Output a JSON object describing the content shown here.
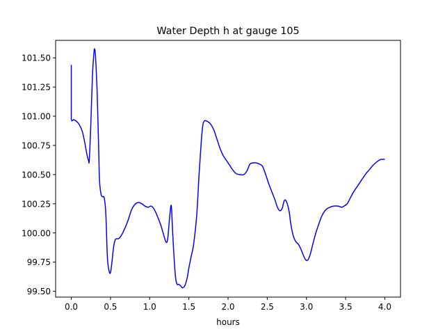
{
  "chart_data": {
    "type": "line",
    "title": "Water Depth h at gauge 105",
    "xlabel": "hours",
    "ylabel": "",
    "xlim": [
      -0.2,
      4.2
    ],
    "ylim": [
      99.45,
      101.65
    ],
    "xticks": [
      0.0,
      0.5,
      1.0,
      1.5,
      2.0,
      2.5,
      3.0,
      3.5,
      4.0
    ],
    "xtick_labels": [
      "0.0",
      "0.5",
      "1.0",
      "1.5",
      "2.0",
      "2.5",
      "3.0",
      "3.5",
      "4.0"
    ],
    "yticks": [
      99.5,
      99.75,
      100.0,
      100.25,
      100.5,
      100.75,
      101.0,
      101.25,
      101.5
    ],
    "ytick_labels": [
      "99.50",
      "99.75",
      "100.00",
      "100.25",
      "100.50",
      "100.75",
      "101.00",
      "101.25",
      "101.50"
    ],
    "grid": false,
    "color": "#0000ff",
    "series": [
      {
        "x": [
          0.0,
          0.0,
          0.0,
          0.03,
          0.06,
          0.1,
          0.14,
          0.17,
          0.2,
          0.22,
          0.23,
          0.25,
          0.27,
          0.29,
          0.3,
          0.31,
          0.33,
          0.35,
          0.36,
          0.38,
          0.4,
          0.42,
          0.44,
          0.46,
          0.48,
          0.5,
          0.52,
          0.54,
          0.56,
          0.58,
          0.6,
          0.63,
          0.67,
          0.72,
          0.77,
          0.82,
          0.86,
          0.9,
          0.94,
          0.98,
          1.02,
          1.06,
          1.1,
          1.14,
          1.18,
          1.21,
          1.23,
          1.25,
          1.27,
          1.28,
          1.29,
          1.31,
          1.33,
          1.35,
          1.37,
          1.39,
          1.42,
          1.45,
          1.48,
          1.5,
          1.53,
          1.56,
          1.6,
          1.63,
          1.66,
          1.68,
          1.7,
          1.72,
          1.75,
          1.78,
          1.82,
          1.86,
          1.9,
          1.94,
          1.98,
          2.02,
          2.06,
          2.1,
          2.15,
          2.2,
          2.24,
          2.28,
          2.32,
          2.36,
          2.4,
          2.44,
          2.48,
          2.52,
          2.56,
          2.6,
          2.63,
          2.66,
          2.69,
          2.72,
          2.75,
          2.78,
          2.8,
          2.83,
          2.86,
          2.9,
          2.93,
          2.96,
          2.99,
          3.02,
          3.05,
          3.08,
          3.12,
          3.16,
          3.2,
          3.25,
          3.3,
          3.35,
          3.4,
          3.45,
          3.48,
          3.52,
          3.56,
          3.6,
          3.65,
          3.7,
          3.75,
          3.8,
          3.85,
          3.9,
          3.95,
          4.0
        ],
        "values": [
          101.44,
          101.2,
          100.98,
          100.97,
          100.96,
          100.93,
          100.87,
          100.78,
          100.67,
          100.62,
          100.63,
          100.95,
          101.35,
          101.55,
          101.57,
          101.5,
          101.2,
          100.7,
          100.45,
          100.33,
          100.31,
          100.3,
          100.17,
          99.8,
          99.68,
          99.66,
          99.76,
          99.88,
          99.94,
          99.95,
          99.95,
          99.97,
          100.02,
          100.1,
          100.2,
          100.25,
          100.26,
          100.25,
          100.23,
          100.22,
          100.23,
          100.2,
          100.14,
          100.07,
          99.98,
          99.92,
          99.95,
          100.1,
          100.23,
          100.2,
          100.05,
          99.8,
          99.62,
          99.56,
          99.56,
          99.55,
          99.53,
          99.55,
          99.62,
          99.7,
          99.8,
          99.9,
          100.15,
          100.5,
          100.8,
          100.93,
          100.96,
          100.96,
          100.95,
          100.93,
          100.88,
          100.8,
          100.72,
          100.66,
          100.62,
          100.58,
          100.54,
          100.51,
          100.5,
          100.5,
          100.53,
          100.59,
          100.6,
          100.6,
          100.59,
          100.57,
          100.5,
          100.42,
          100.35,
          100.28,
          100.22,
          100.19,
          100.21,
          100.28,
          100.26,
          100.18,
          100.08,
          99.98,
          99.93,
          99.9,
          99.86,
          99.81,
          99.77,
          99.77,
          99.82,
          99.9,
          100.0,
          100.08,
          100.15,
          100.2,
          100.22,
          100.23,
          100.23,
          100.22,
          100.23,
          100.25,
          100.3,
          100.35,
          100.4,
          100.45,
          100.5,
          100.54,
          100.58,
          100.61,
          100.63,
          100.63
        ]
      }
    ]
  }
}
